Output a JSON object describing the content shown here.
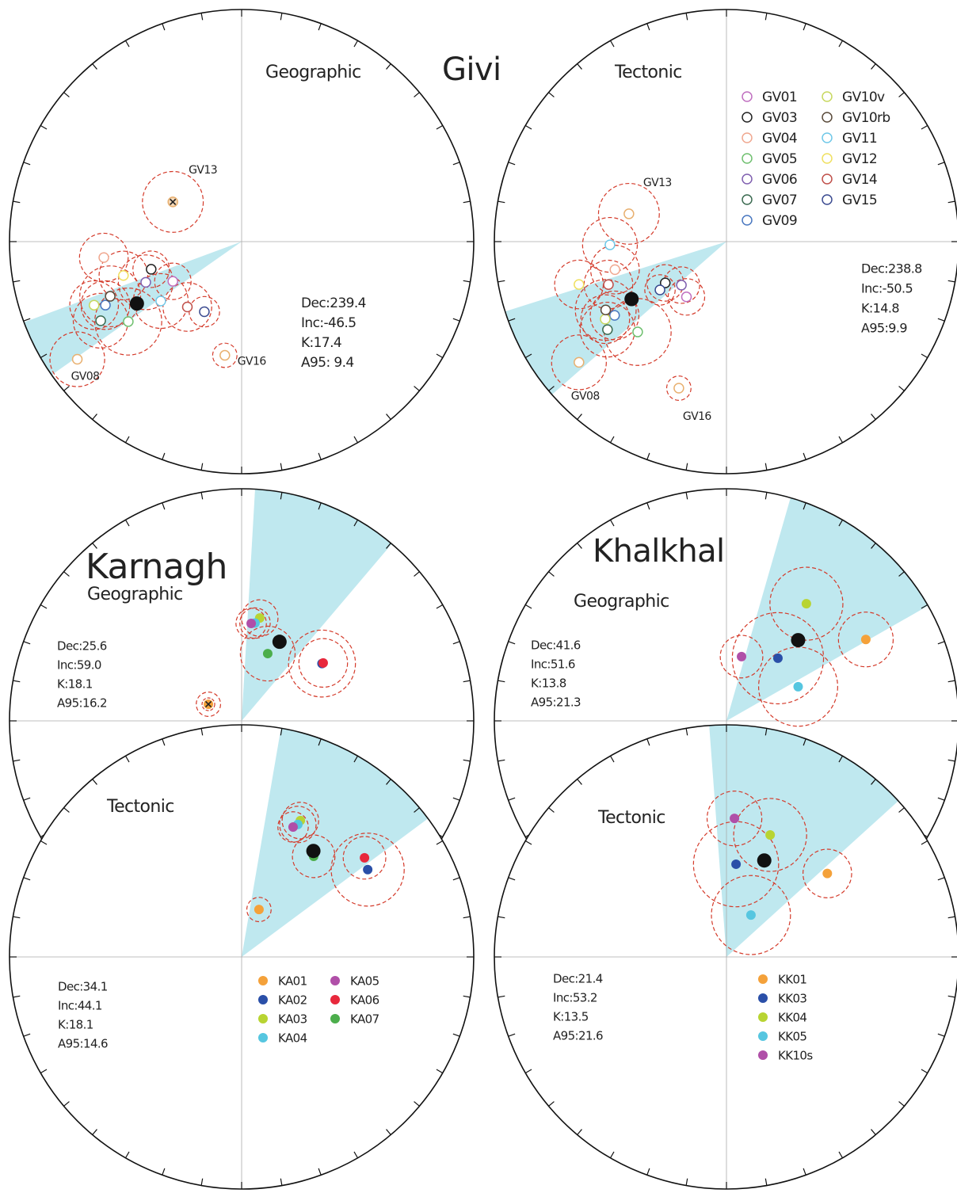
{
  "chart_data": [
    {
      "type": "stereonet",
      "title": "Givi",
      "subtitle": "Geographic",
      "marker": "open",
      "mean": {
        "dec": 239.4,
        "inc": -46.5,
        "k": 17.4,
        "a95": 9.4
      },
      "mean_labels": [
        "Dec:239.4",
        "Inc:-46.5",
        "K:17.4",
        "A95: 9.4"
      ],
      "sites": [
        {
          "name": "GV01",
          "color": "#c070c0",
          "dec": 240,
          "inc": -62,
          "a95": 6
        },
        {
          "name": "GV03",
          "color": "#222222",
          "dec": 253,
          "inc": -56.5,
          "a95": 6
        },
        {
          "name": "GV04",
          "color": "#f0a890",
          "dec": 263.4,
          "inc": -40,
          "a95": 8
        },
        {
          "name": "GV05",
          "color": "#70c070",
          "dec": 234.8,
          "inc": -40,
          "a95": 11
        },
        {
          "name": "GV06",
          "color": "#8060b0",
          "dec": 247,
          "inc": -53,
          "a95": 9
        },
        {
          "name": "GV07",
          "color": "#3a6a50",
          "dec": 240.7,
          "inc": -31,
          "a95": 9
        },
        {
          "name": "GV09",
          "color": "#4a78c0",
          "dec": 245,
          "inc": -35.5,
          "a95": 8
        },
        {
          "name": "GV10v",
          "color": "#c8d860",
          "dec": 246.7,
          "inc": -31.4,
          "a95": 8
        },
        {
          "name": "GV10rb",
          "color": "#5a4a3a",
          "dec": 247.4,
          "inc": -38.6,
          "a95": 10
        },
        {
          "name": "GV11",
          "color": "#70c8e8",
          "dec": 233.7,
          "inc": -54.4,
          "a95": 9
        },
        {
          "name": "GV12",
          "color": "#f0e060",
          "dec": 254,
          "inc": -46,
          "a95": 8
        },
        {
          "name": "GV14",
          "color": "#c0504a",
          "dec": 219.7,
          "inc": -60,
          "a95": 8
        },
        {
          "name": "GV15",
          "color": "#3a4a90",
          "dec": 208,
          "inc": -62,
          "a95": 5
        },
        {
          "name": "GV13",
          "color": "#e8b070",
          "dec": 300,
          "inc": -62,
          "a95": 10,
          "excluded": true,
          "labeled": true
        },
        {
          "name": "GV08",
          "color": "#e8b070",
          "dec": 234.4,
          "inc": -14,
          "a95": 9,
          "labeled": true
        },
        {
          "name": "GV16",
          "color": "#e8b070",
          "dec": 188.4,
          "inc": -49,
          "a95": 4,
          "labeled": true
        }
      ]
    },
    {
      "type": "stereonet",
      "subtitle": "Tectonic",
      "marker": "open",
      "legend": true,
      "mean": {
        "dec": 238.8,
        "inc": -50.5,
        "k": 14.8,
        "a95": 9.9
      },
      "mean_labels": [
        "Dec:238.8",
        "Inc:-50.5",
        "K:14.8",
        "A95:9.9"
      ],
      "sites": [
        {
          "name": "GV01",
          "color": "#c070c0",
          "dec": 215.9,
          "inc": -66,
          "a95": 6
        },
        {
          "name": "GV03",
          "color": "#222222",
          "dec": 236,
          "inc": -64,
          "a95": 6
        },
        {
          "name": "GV04",
          "color": "#f0a890",
          "dec": 255.9,
          "inc": -49,
          "a95": 8
        },
        {
          "name": "GV05",
          "color": "#70c070",
          "dec": 224.5,
          "inc": -44.6,
          "a95": 11
        },
        {
          "name": "GV06",
          "color": "#8060b0",
          "dec": 226,
          "inc": -68,
          "a95": 6
        },
        {
          "name": "GV07",
          "color": "#3a6a50",
          "dec": 233.5,
          "inc": -36.4,
          "a95": 9
        },
        {
          "name": "GV09",
          "color": "#4a78c0",
          "dec": 236.6,
          "inc": -41.8,
          "a95": 8
        },
        {
          "name": "GV10v",
          "color": "#c8d860",
          "dec": 237.4,
          "inc": -38,
          "a95": 8
        },
        {
          "name": "GV10rb",
          "color": "#5a4a3a",
          "dec": 240.5,
          "inc": -40,
          "a95": 10
        },
        {
          "name": "GV11",
          "color": "#70c8e8",
          "dec": 268.4,
          "inc": -48.4,
          "a95": 9
        },
        {
          "name": "GV12",
          "color": "#f0e060",
          "dec": 253.8,
          "inc": -34.2,
          "a95": 8
        },
        {
          "name": "GV14",
          "color": "#c0504a",
          "dec": 250,
          "inc": -45,
          "a95": 8
        },
        {
          "name": "GV15",
          "color": "#3a4a90",
          "dec": 234,
          "inc": -61,
          "a95": 5
        },
        {
          "name": "GV13",
          "color": "#e8b070",
          "dec": 285.9,
          "inc": -54,
          "a95": 10,
          "labeled": true
        },
        {
          "name": "GV08",
          "color": "#e8b070",
          "dec": 230.7,
          "inc": -19,
          "a95": 9,
          "labeled": true
        },
        {
          "name": "GV16",
          "color": "#e8b070",
          "dec": 198,
          "inc": -34,
          "a95": 4,
          "labeled": true
        }
      ]
    },
    {
      "type": "stereonet",
      "title": "Karnagh",
      "subtitle": "Geographic",
      "marker": "filled",
      "mean": {
        "dec": 25.6,
        "inc": 59.0,
        "k": 18.1,
        "a95": 16.2
      },
      "mean_labels": [
        "Dec:25.6",
        "Inc:59.0",
        "K:18.1",
        "A95:16.2"
      ],
      "sites": [
        {
          "name": "KA01",
          "color": "#f4a13a",
          "dec": 296.6,
          "inc": 77,
          "a95": 4,
          "excluded": true
        },
        {
          "name": "KA02",
          "color": "#2a4fa8",
          "dec": 54.5,
          "inc": 55,
          "a95": 11
        },
        {
          "name": "KA03",
          "color": "#b8d432",
          "dec": 10,
          "inc": 52.9,
          "a95": 6
        },
        {
          "name": "KA04",
          "color": "#56c6e0",
          "dec": 7.8,
          "inc": 55,
          "a95": 5
        },
        {
          "name": "KA05",
          "color": "#b04fa8",
          "dec": 5.6,
          "inc": 55.3,
          "a95": 5
        },
        {
          "name": "KA06",
          "color": "#e8283c",
          "dec": 54.6,
          "inc": 54.5,
          "a95": 8
        },
        {
          "name": "KA07",
          "color": "#4cae4c",
          "dec": 21.2,
          "inc": 64.6,
          "a95": 9
        }
      ]
    },
    {
      "type": "stereonet",
      "title": "Khalkhal",
      "subtitle": "Geographic",
      "marker": "filled",
      "mean": {
        "dec": 41.6,
        "inc": 51.6,
        "k": 13.8,
        "a95": 21.3
      },
      "mean_labels": [
        "Dec:41.6",
        "Inc:51.6",
        "K:13.8",
        "A95:21.3"
      ],
      "sites": [
        {
          "name": "KK01",
          "color": "#f4a13a",
          "dec": 59.7,
          "inc": 31.1,
          "a95": 9
        },
        {
          "name": "KK03",
          "color": "#2a4fa8",
          "dec": 39.4,
          "inc": 61.4,
          "a95": 15
        },
        {
          "name": "KK04",
          "color": "#b8d432",
          "dec": 34.3,
          "inc": 38.8,
          "a95": 12
        },
        {
          "name": "KK05",
          "color": "#56c6e0",
          "dec": 64.5,
          "inc": 62,
          "a95": 13
        },
        {
          "name": "KK10s",
          "color": "#b04fa8",
          "dec": 13.2,
          "inc": 66.8,
          "a95": 7
        }
      ]
    },
    {
      "type": "stereonet",
      "subtitle": "Tectonic",
      "marker": "filled",
      "legend": true,
      "mean": {
        "dec": 34.1,
        "inc": 44.1,
        "k": 18.1,
        "a95": 14.6
      },
      "mean_labels": [
        "Dec:34.1",
        "Inc:44.1",
        "K:18.1",
        "A95:14.6"
      ],
      "sites": [
        {
          "name": "KA01",
          "color": "#f4a13a",
          "dec": 20.1,
          "inc": 72.3,
          "a95": 4
        },
        {
          "name": "KA02",
          "color": "#2a4fa8",
          "dec": 55.3,
          "inc": 34.3,
          "a95": 12
        },
        {
          "name": "KA03",
          "color": "#b8d432",
          "dec": 23.3,
          "inc": 36.2,
          "a95": 6
        },
        {
          "name": "KA04",
          "color": "#56c6e0",
          "dec": 23,
          "inc": 38,
          "a95": 6
        },
        {
          "name": "KA05",
          "color": "#b04fa8",
          "dec": 21.6,
          "inc": 39.6,
          "a95": 5
        },
        {
          "name": "KA06",
          "color": "#e8283c",
          "dec": 51.1,
          "inc": 32.5,
          "a95": 7
        },
        {
          "name": "KA07",
          "color": "#4cae4c",
          "dec": 35.6,
          "inc": 45.7,
          "a95": 7
        }
      ]
    },
    {
      "type": "stereonet",
      "subtitle": "Tectonic",
      "marker": "filled",
      "legend": true,
      "mean": {
        "dec": 21.4,
        "inc": 53.2,
        "k": 13.5,
        "a95": 21.6
      },
      "mean_labels": [
        "Dec:21.4",
        "Inc:53.2",
        "K:13.5",
        "A95:21.6"
      ],
      "sites": [
        {
          "name": "KK01",
          "color": "#f4a13a",
          "dec": 50.4,
          "inc": 43,
          "a95": 8
        },
        {
          "name": "KK03",
          "color": "#2a4fa8",
          "dec": 5.9,
          "inc": 57,
          "a95": 14
        },
        {
          "name": "KK04",
          "color": "#b8d432",
          "dec": 19.7,
          "inc": 43.5,
          "a95": 12
        },
        {
          "name": "KK05",
          "color": "#56c6e0",
          "dec": 30.3,
          "inc": 73,
          "a95": 13
        },
        {
          "name": "KK10s",
          "color": "#b04fa8",
          "dec": 3.3,
          "inc": 40,
          "a95": 9
        }
      ]
    }
  ]
}
